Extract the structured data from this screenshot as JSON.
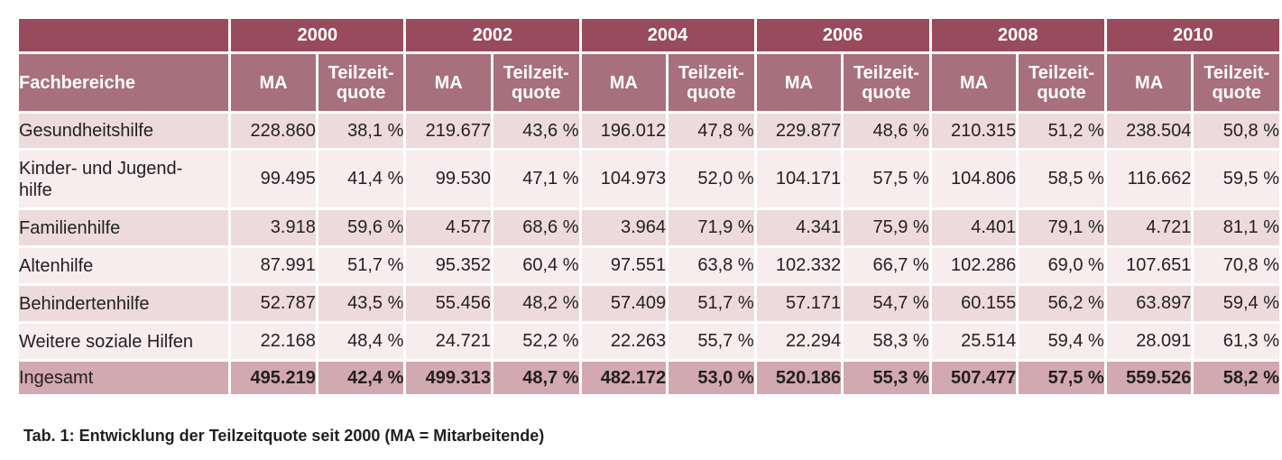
{
  "table": {
    "category_header": "Fachbereiche",
    "years": [
      "2000",
      "2002",
      "2004",
      "2006",
      "2008",
      "2010"
    ],
    "sub_headers": {
      "ma": "MA",
      "quote_line1": "Teilzeit-",
      "quote_line2": "quote"
    },
    "rows": [
      {
        "label": "Gesundheitshilfe",
        "cells": [
          "228.860",
          "38,1 %",
          "219.677",
          "43,6 %",
          "196.012",
          "47,8 %",
          "229.877",
          "48,6 %",
          "210.315",
          "51,2 %",
          "238.504",
          "50,8 %"
        ]
      },
      {
        "label": "Kinder- und Jugend-\nhilfe",
        "cells": [
          "99.495",
          "41,4 %",
          "99.530",
          "47,1 %",
          "104.973",
          "52,0 %",
          "104.171",
          "57,5 %",
          "104.806",
          "58,5 %",
          "116.662",
          "59,5 %"
        ]
      },
      {
        "label": "Familienhilfe",
        "cells": [
          "3.918",
          "59,6 %",
          "4.577",
          "68,6 %",
          "3.964",
          "71,9 %",
          "4.341",
          "75,9 %",
          "4.401",
          "79,1 %",
          "4.721",
          "81,1 %"
        ]
      },
      {
        "label": "Altenhilfe",
        "cells": [
          "87.991",
          "51,7 %",
          "95.352",
          "60,4 %",
          "97.551",
          "63,8 %",
          "102.332",
          "66,7 %",
          "102.286",
          "69,0 %",
          "107.651",
          "70,8 %"
        ]
      },
      {
        "label": "Behindertenhilfe",
        "cells": [
          "52.787",
          "43,5 %",
          "55.456",
          "48,2 %",
          "57.409",
          "51,7 %",
          "57.171",
          "54,7 %",
          "60.155",
          "56,2 %",
          "63.897",
          "59,4 %"
        ]
      },
      {
        "label": "Weitere soziale Hilfen",
        "cells": [
          "22.168",
          "48,4 %",
          "24.721",
          "52,2 %",
          "22.263",
          "55,7 %",
          "22.294",
          "58,3 %",
          "25.514",
          "59,4 %",
          "28.091",
          "61,3 %"
        ]
      }
    ],
    "total": {
      "label": "Ingesamt",
      "cells": [
        "495.219",
        "42,4 %",
        "499.313",
        "48,7 %",
        "482.172",
        "53,0 %",
        "520.186",
        "55,3 %",
        "507.477",
        "57,5 %",
        "559.526",
        "58,2 %"
      ]
    }
  },
  "caption": "Tab. 1: Entwicklung der Teilzeitquote seit 2000 (MA = Mitarbeitende)",
  "colors": {
    "header_dark": "#984b5c",
    "header_light": "#a7707c",
    "row_a": "#ecdadd",
    "row_b": "#f7ecee",
    "total": "#d2a8b1"
  }
}
